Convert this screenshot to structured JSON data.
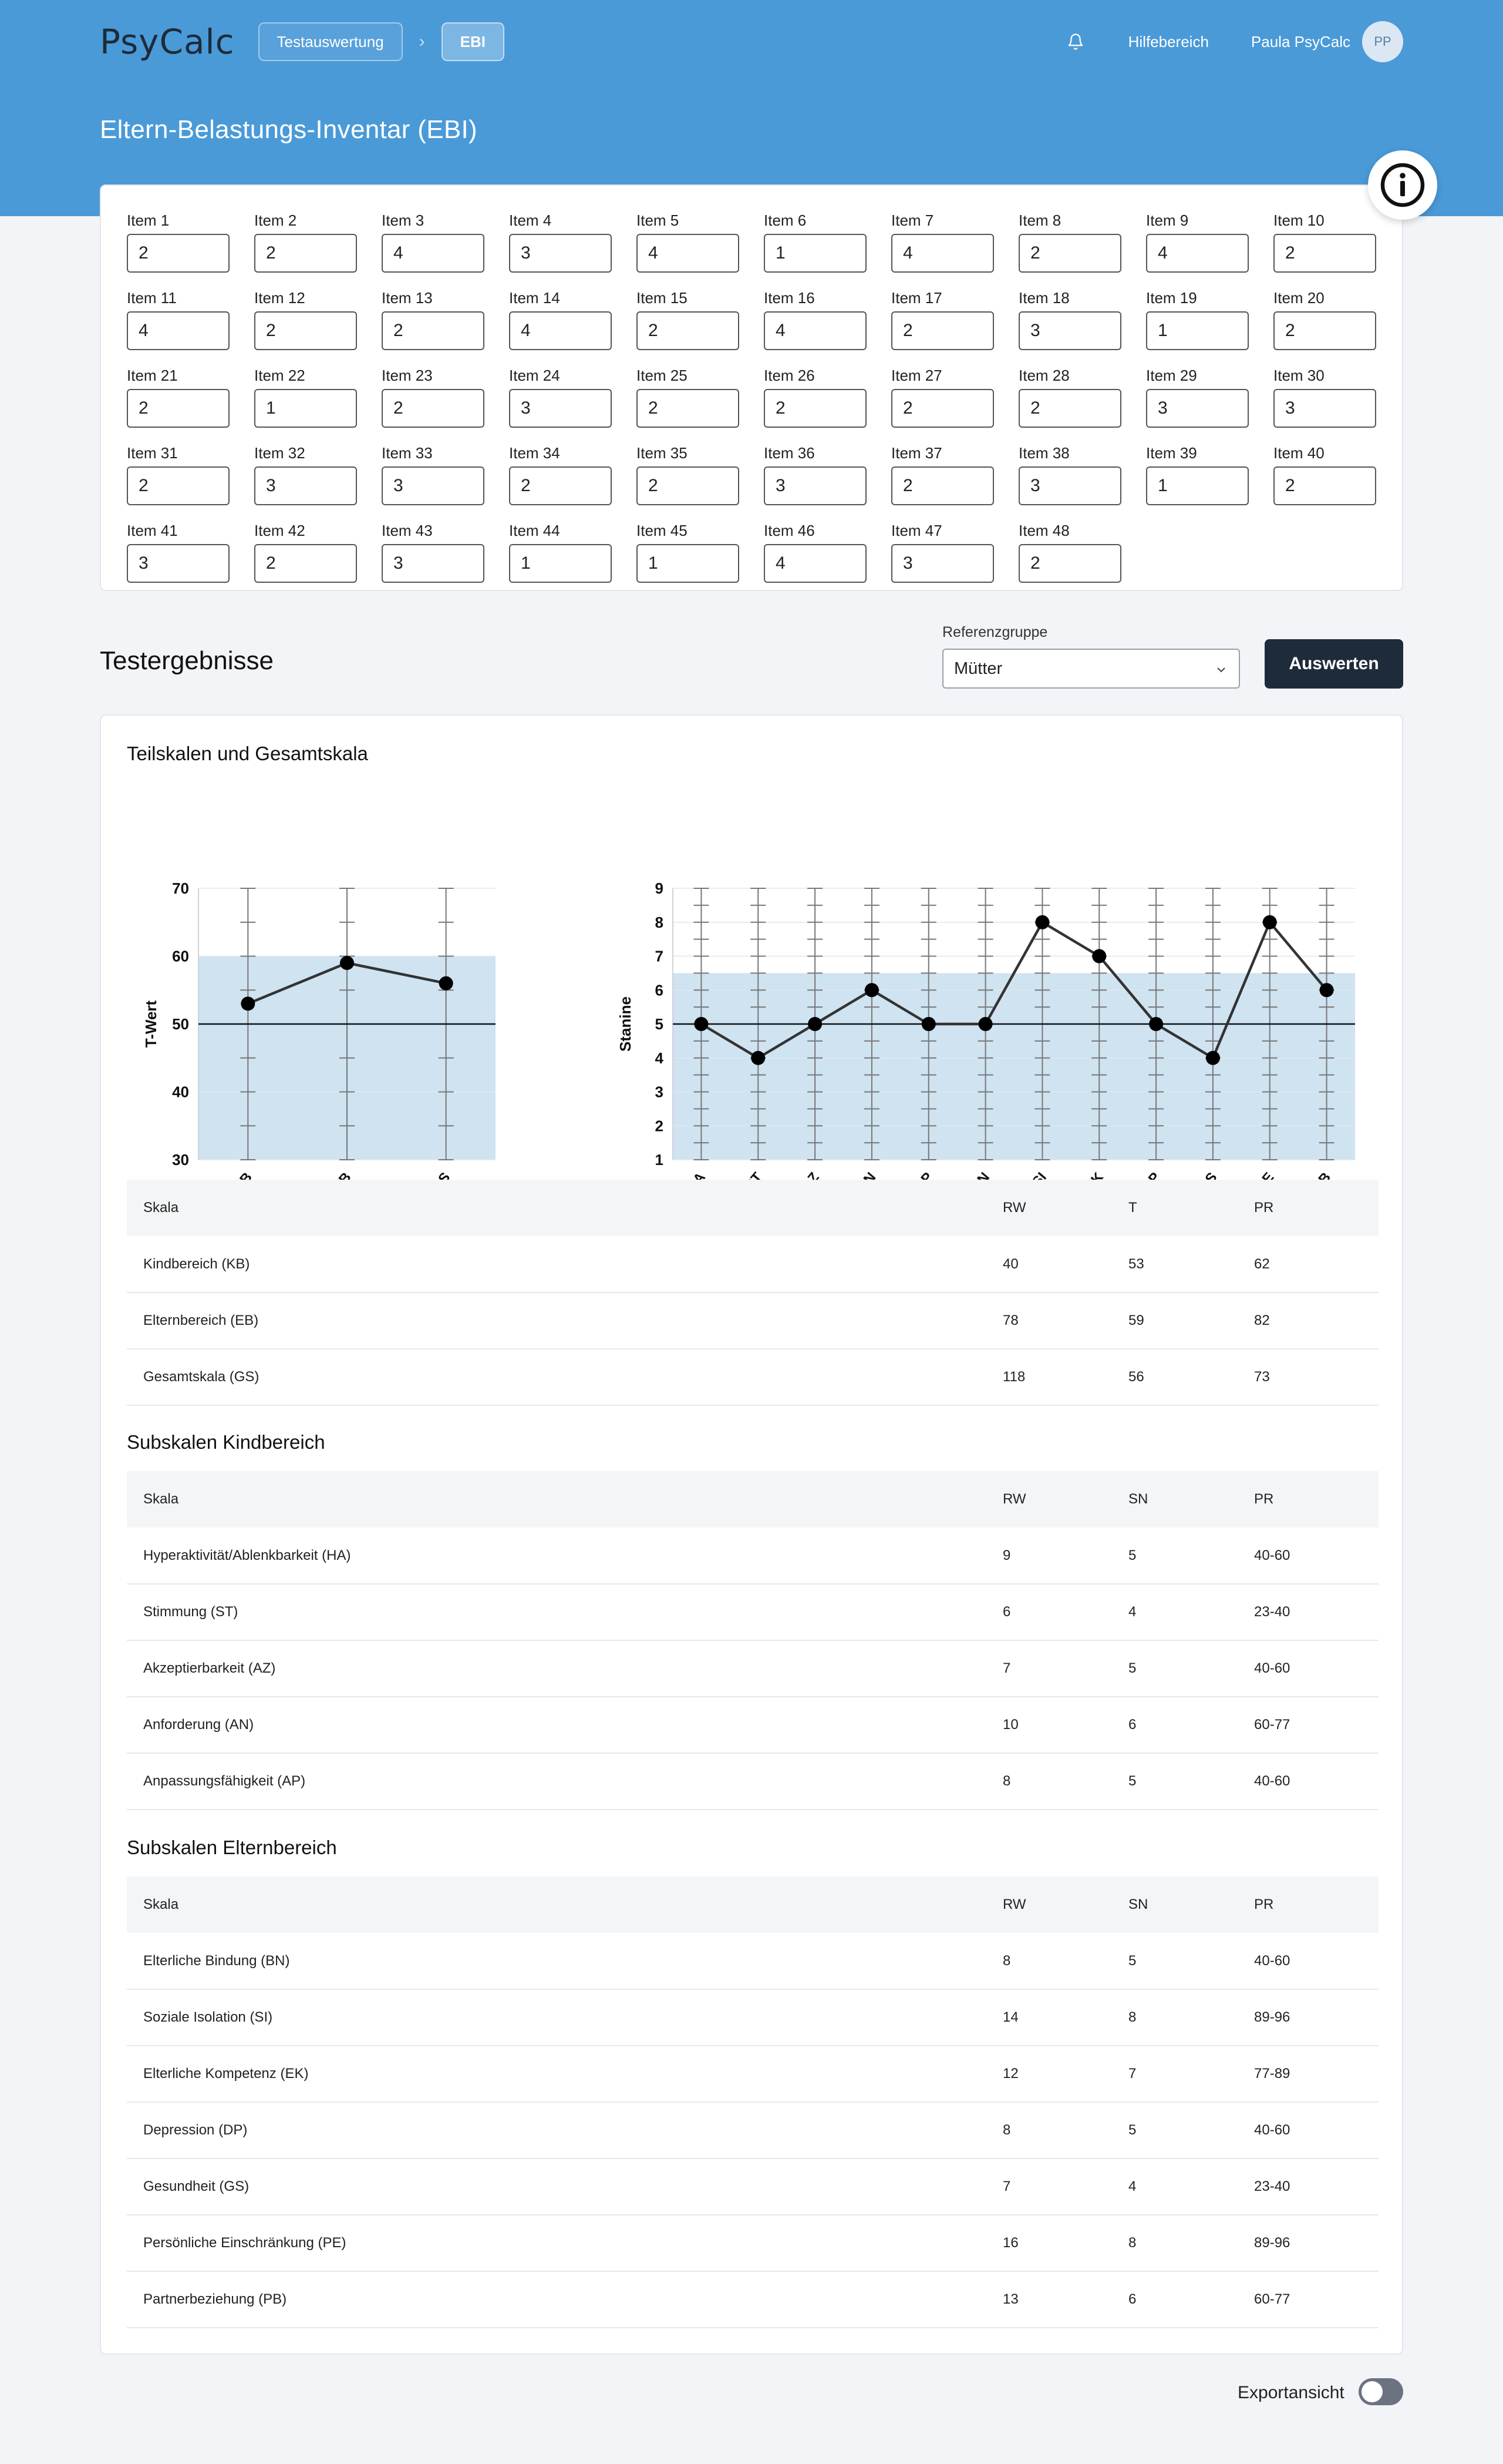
{
  "header": {
    "logo": "PsyCalc",
    "breadcrumbs": [
      "Testauswertung",
      "EBI"
    ],
    "help_link": "Hilfebereich",
    "user_name": "Paula PsyCalc",
    "avatar_initials": "PP",
    "title": "Eltern-Belastungs-Inventar (EBI)"
  },
  "items": [
    {
      "label": "Item 1",
      "value": "2"
    },
    {
      "label": "Item 2",
      "value": "2"
    },
    {
      "label": "Item 3",
      "value": "4"
    },
    {
      "label": "Item 4",
      "value": "3"
    },
    {
      "label": "Item 5",
      "value": "4"
    },
    {
      "label": "Item 6",
      "value": "1"
    },
    {
      "label": "Item 7",
      "value": "4"
    },
    {
      "label": "Item 8",
      "value": "2"
    },
    {
      "label": "Item 9",
      "value": "4"
    },
    {
      "label": "Item 10",
      "value": "2"
    },
    {
      "label": "Item 11",
      "value": "4"
    },
    {
      "label": "Item 12",
      "value": "2"
    },
    {
      "label": "Item 13",
      "value": "2"
    },
    {
      "label": "Item 14",
      "value": "4"
    },
    {
      "label": "Item 15",
      "value": "2"
    },
    {
      "label": "Item 16",
      "value": "4"
    },
    {
      "label": "Item 17",
      "value": "2"
    },
    {
      "label": "Item 18",
      "value": "3"
    },
    {
      "label": "Item 19",
      "value": "1"
    },
    {
      "label": "Item 20",
      "value": "2"
    },
    {
      "label": "Item 21",
      "value": "2"
    },
    {
      "label": "Item 22",
      "value": "1"
    },
    {
      "label": "Item 23",
      "value": "2"
    },
    {
      "label": "Item 24",
      "value": "3"
    },
    {
      "label": "Item 25",
      "value": "2"
    },
    {
      "label": "Item 26",
      "value": "2"
    },
    {
      "label": "Item 27",
      "value": "2"
    },
    {
      "label": "Item 28",
      "value": "2"
    },
    {
      "label": "Item 29",
      "value": "3"
    },
    {
      "label": "Item 30",
      "value": "3"
    },
    {
      "label": "Item 31",
      "value": "2"
    },
    {
      "label": "Item 32",
      "value": "3"
    },
    {
      "label": "Item 33",
      "value": "3"
    },
    {
      "label": "Item 34",
      "value": "2"
    },
    {
      "label": "Item 35",
      "value": "2"
    },
    {
      "label": "Item 36",
      "value": "3"
    },
    {
      "label": "Item 37",
      "value": "2"
    },
    {
      "label": "Item 38",
      "value": "3"
    },
    {
      "label": "Item 39",
      "value": "1"
    },
    {
      "label": "Item 40",
      "value": "2"
    },
    {
      "label": "Item 41",
      "value": "3"
    },
    {
      "label": "Item 42",
      "value": "2"
    },
    {
      "label": "Item 43",
      "value": "3"
    },
    {
      "label": "Item 44",
      "value": "1"
    },
    {
      "label": "Item 45",
      "value": "1"
    },
    {
      "label": "Item 46",
      "value": "4"
    },
    {
      "label": "Item 47",
      "value": "3"
    },
    {
      "label": "Item 48",
      "value": "2"
    }
  ],
  "results": {
    "title": "Testergebnisse",
    "reference_label": "Referenzgruppe",
    "reference_value": "Mütter",
    "evaluate_button": "Auswerten",
    "chart_section_title": "Teilskalen und Gesamtskala"
  },
  "chart_data": [
    {
      "type": "line",
      "categories": [
        "KB",
        "EB",
        "GS"
      ],
      "values": [
        53,
        59,
        56
      ],
      "ylabel": "T-Wert",
      "ylim": [
        30,
        70
      ],
      "yticks": [
        30,
        40,
        50,
        60,
        70
      ],
      "normal_band": [
        30,
        60
      ],
      "reference_line": 50,
      "band_color": "#cfe3f1",
      "line_color": "#333333"
    },
    {
      "type": "line",
      "categories": [
        "HA",
        "ST",
        "AZ",
        "AN",
        "AP",
        "BN",
        "SI",
        "EK",
        "DP",
        "GS",
        "PE",
        "PB"
      ],
      "values": [
        5,
        4,
        5,
        6,
        5,
        5,
        8,
        7,
        5,
        4,
        8,
        6
      ],
      "ylabel": "Stanine",
      "ylim": [
        1,
        9
      ],
      "yticks": [
        1,
        2,
        3,
        4,
        5,
        6,
        7,
        8,
        9
      ],
      "normal_band": [
        1,
        6.5
      ],
      "reference_line": 5,
      "band_color": "#cfe3f1",
      "line_color": "#333333"
    }
  ],
  "tables": [
    {
      "title": "",
      "headers": [
        "Skala",
        "RW",
        "T",
        "PR"
      ],
      "rows": [
        [
          "Kindbereich (KB)",
          "40",
          "53",
          "62"
        ],
        [
          "Elternbereich (EB)",
          "78",
          "59",
          "82"
        ],
        [
          "Gesamtskala (GS)",
          "118",
          "56",
          "73"
        ]
      ]
    },
    {
      "title": "Subskalen Kindbereich",
      "headers": [
        "Skala",
        "RW",
        "SN",
        "PR"
      ],
      "rows": [
        [
          "Hyperaktivität/Ablenkbarkeit (HA)",
          "9",
          "5",
          "40-60"
        ],
        [
          "Stimmung (ST)",
          "6",
          "4",
          "23-40"
        ],
        [
          "Akzeptierbarkeit (AZ)",
          "7",
          "5",
          "40-60"
        ],
        [
          "Anforderung (AN)",
          "10",
          "6",
          "60-77"
        ],
        [
          "Anpassungsfähigkeit (AP)",
          "8",
          "5",
          "40-60"
        ]
      ]
    },
    {
      "title": "Subskalen Elternbereich",
      "headers": [
        "Skala",
        "RW",
        "SN",
        "PR"
      ],
      "rows": [
        [
          "Elterliche Bindung (BN)",
          "8",
          "5",
          "40-60"
        ],
        [
          "Soziale Isolation (SI)",
          "14",
          "8",
          "89-96"
        ],
        [
          "Elterliche Kompetenz (EK)",
          "12",
          "7",
          "77-89"
        ],
        [
          "Depression (DP)",
          "8",
          "5",
          "40-60"
        ],
        [
          "Gesundheit (GS)",
          "7",
          "4",
          "23-40"
        ],
        [
          "Persönliche Einschränkung (PE)",
          "16",
          "8",
          "89-96"
        ],
        [
          "Partnerbeziehung (PB)",
          "13",
          "6",
          "60-77"
        ]
      ]
    }
  ],
  "footer": {
    "export_label": "Exportansicht",
    "export_enabled": false
  },
  "colors": {
    "header_bg": "#4a9ad8",
    "primary_button": "#1e2b3a"
  }
}
